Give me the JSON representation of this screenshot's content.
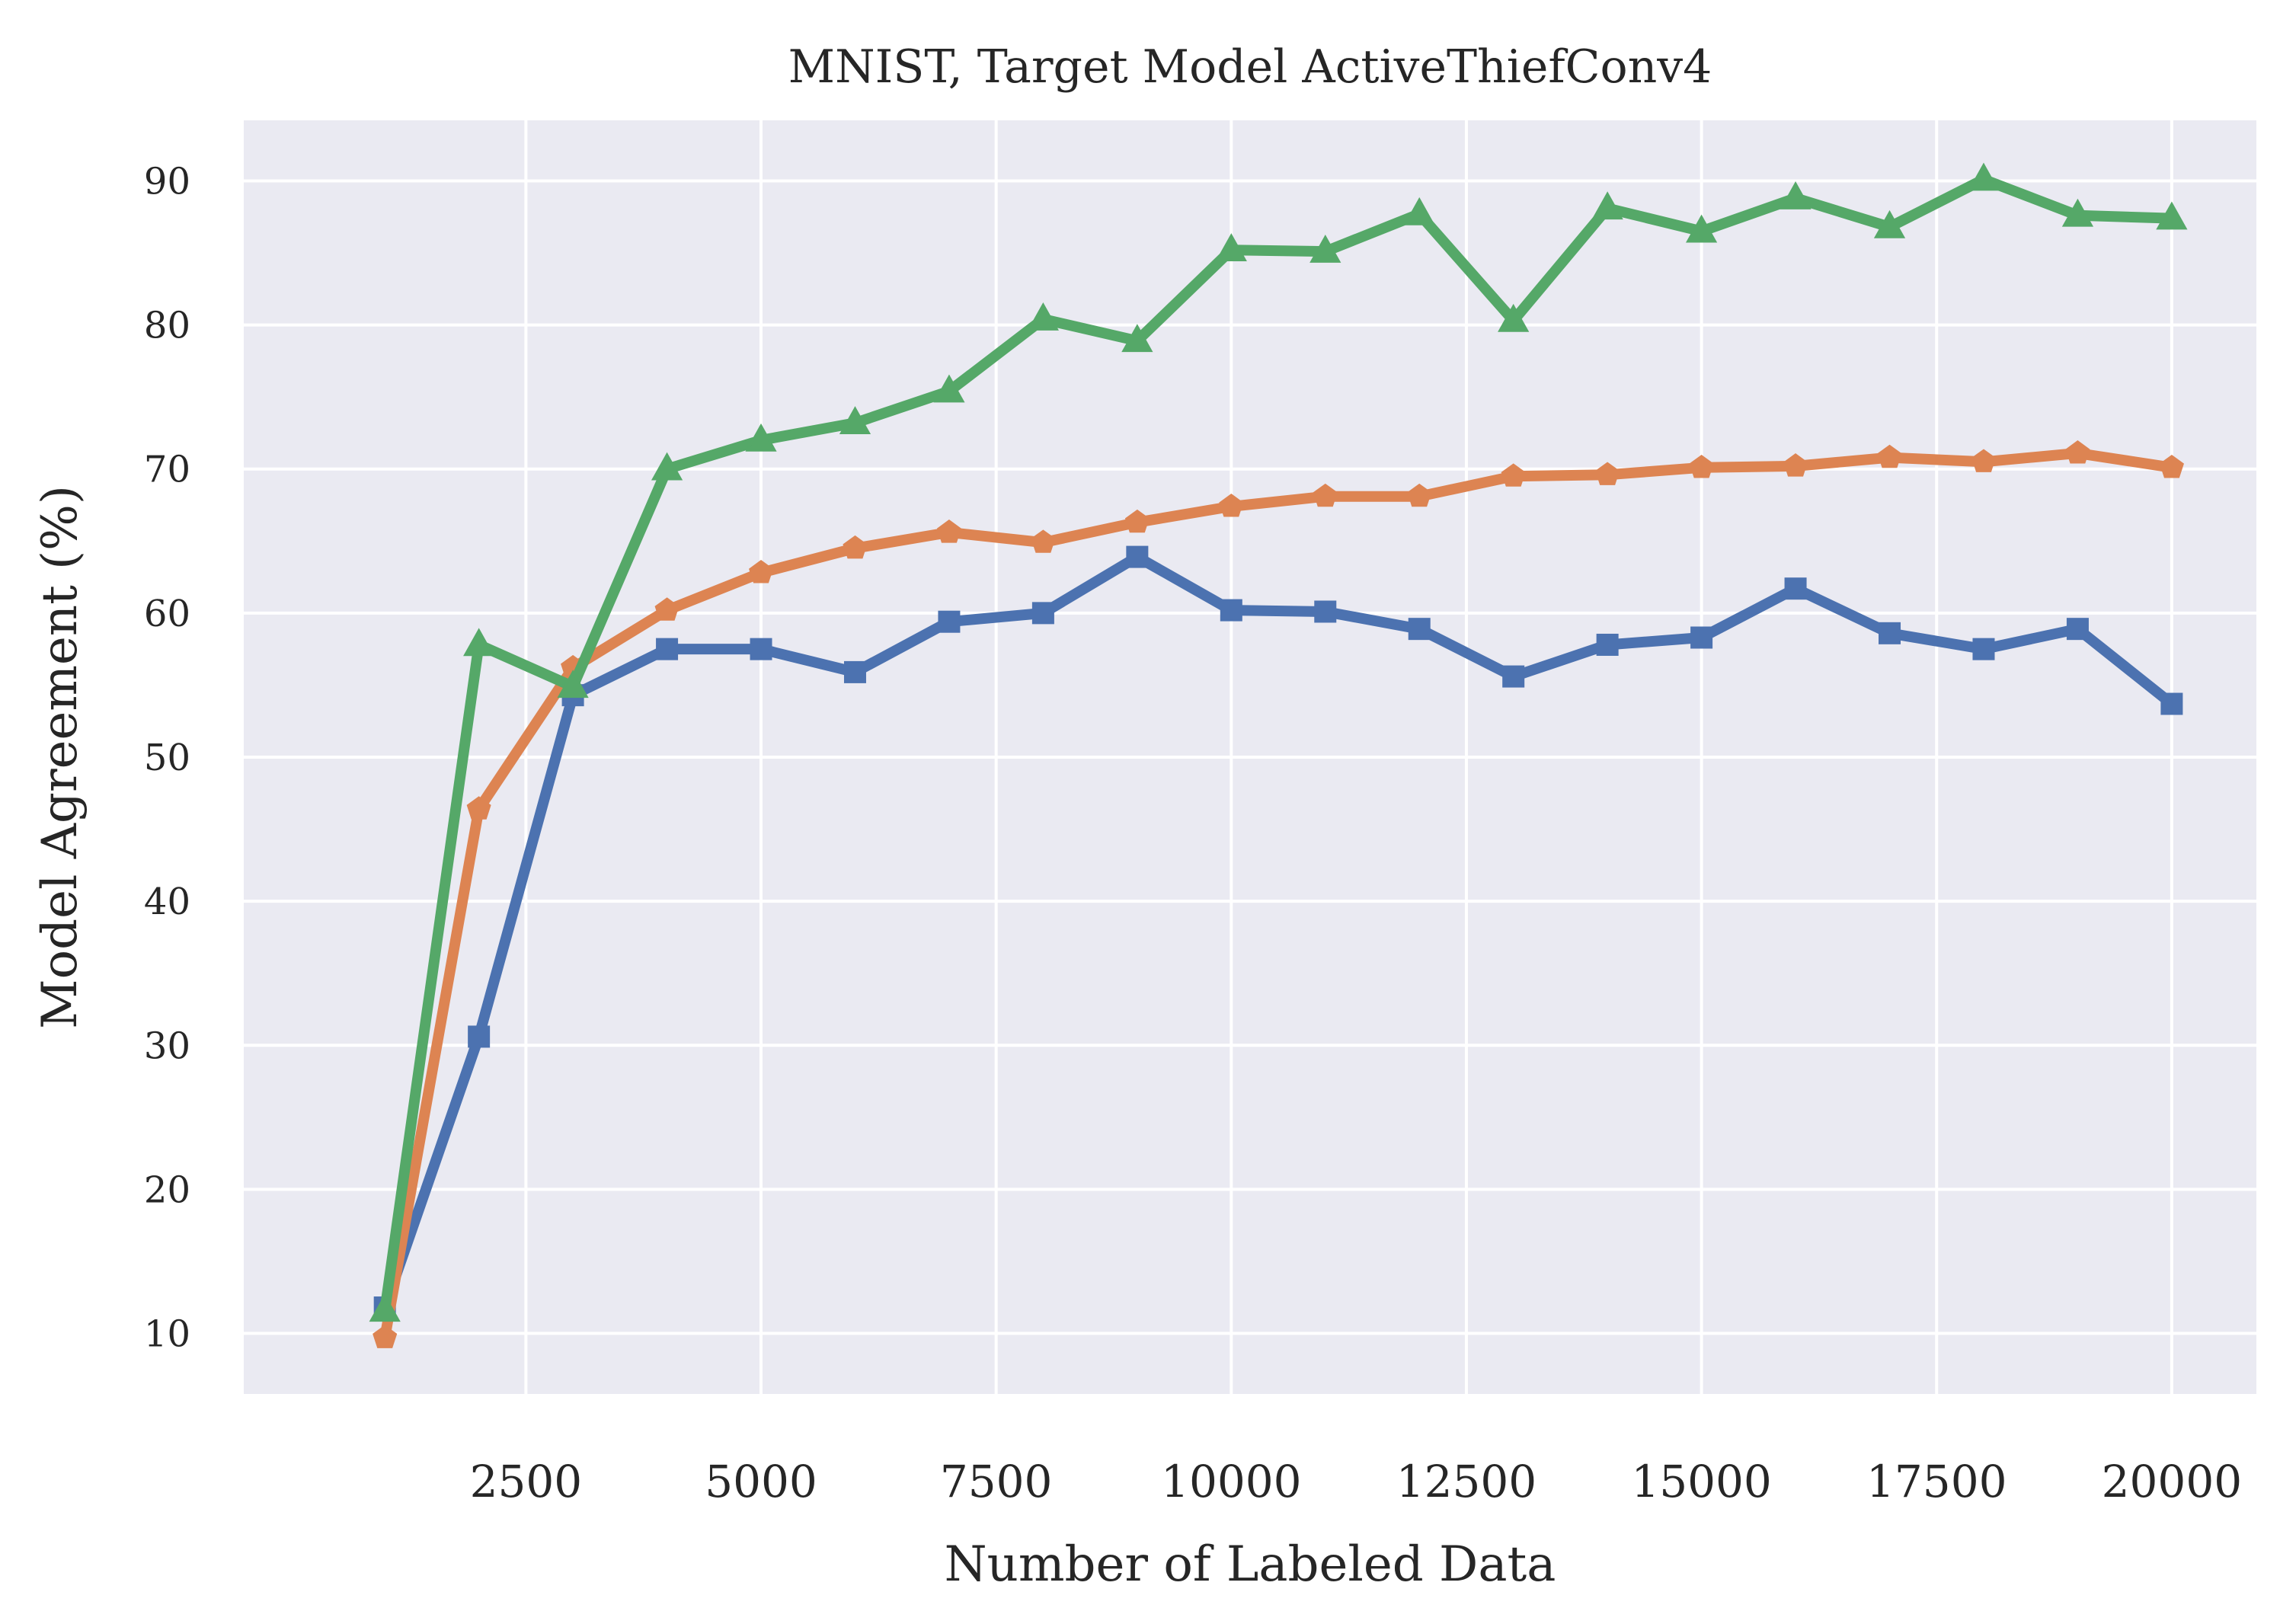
{
  "chart_data": {
    "type": "line",
    "title": "MNIST, Target Model ActiveThiefConv4",
    "xlabel": "Number of Labeled Data",
    "ylabel": "Model Agreement (%)",
    "xlim": [
      -500,
      20900
    ],
    "ylim": [
      5.8,
      94.2
    ],
    "xticks": [
      2500,
      5000,
      7500,
      10000,
      12500,
      15000,
      17500,
      20000
    ],
    "yticks": [
      10,
      20,
      30,
      40,
      50,
      60,
      70,
      80,
      90
    ],
    "grid": true,
    "legend": "none",
    "x": [
      1000,
      2000,
      3000,
      4000,
      5000,
      6000,
      7000,
      8000,
      9000,
      10000,
      11000,
      12000,
      13000,
      14000,
      15000,
      16000,
      17000,
      18000,
      19000,
      20000
    ],
    "series": [
      {
        "color": "#4c72b0",
        "marker": "square",
        "values": [
          11.8,
          30.6,
          54.3,
          57.5,
          57.5,
          55.9,
          59.4,
          60.0,
          63.9,
          60.2,
          60.1,
          58.9,
          55.6,
          57.8,
          58.3,
          61.7,
          58.6,
          57.5,
          58.9,
          53.7
        ]
      },
      {
        "color": "#dd8452",
        "marker": "pentagon",
        "values": [
          9.7,
          46.4,
          56.2,
          60.2,
          62.8,
          64.5,
          65.6,
          64.9,
          66.3,
          67.4,
          68.1,
          68.1,
          69.5,
          69.6,
          70.1,
          70.2,
          70.8,
          70.5,
          71.1,
          70.1
        ]
      },
      {
        "color": "#55a868",
        "marker": "triangle",
        "values": [
          11.6,
          57.8,
          54.9,
          70.0,
          72.0,
          73.2,
          75.4,
          80.4,
          78.9,
          85.2,
          85.1,
          87.7,
          80.3,
          88.1,
          86.5,
          88.8,
          86.8,
          90.1,
          87.6,
          87.4
        ]
      }
    ]
  }
}
